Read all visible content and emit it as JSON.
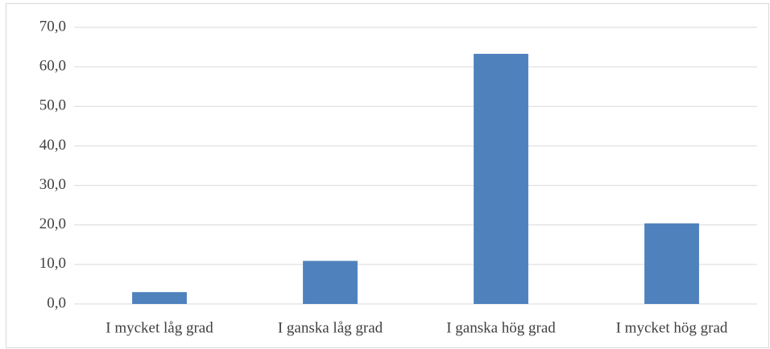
{
  "chart_data": {
    "type": "bar",
    "categories": [
      "I mycket låg grad",
      "I ganska låg grad",
      "I ganska hög grad",
      "I mycket hög grad"
    ],
    "values": [
      3.0,
      10.9,
      63.3,
      20.4
    ],
    "color": "#4f81bd",
    "ylim": [
      0,
      70
    ],
    "yticks": [
      {
        "value": 0,
        "label": "0,0"
      },
      {
        "value": 10,
        "label": "10,0"
      },
      {
        "value": 20,
        "label": "20,0"
      },
      {
        "value": 30,
        "label": "30,0"
      },
      {
        "value": 40,
        "label": "40,0"
      },
      {
        "value": 50,
        "label": "50,0"
      },
      {
        "value": 60,
        "label": "60,0"
      },
      {
        "value": 70,
        "label": "70,0"
      }
    ],
    "grid": true
  }
}
